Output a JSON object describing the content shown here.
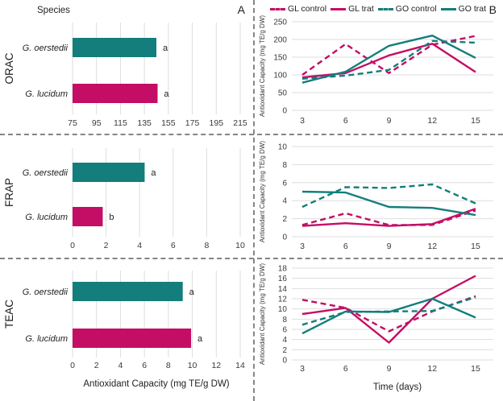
{
  "figure": {
    "panel_a_label": "A",
    "panel_b_label": "B"
  },
  "colors": {
    "teal": "#137e7c",
    "magenta": "#c40d64",
    "grid": "#dedede",
    "tick_text": "#3a3a3a",
    "separator": "#858585"
  },
  "legend": {
    "items": [
      {
        "label": "GL control",
        "color": "magenta",
        "dashed": true
      },
      {
        "label": "GL trat",
        "color": "magenta",
        "dashed": false
      },
      {
        "label": "GO control",
        "color": "teal",
        "dashed": true
      },
      {
        "label": "GO trat",
        "color": "teal",
        "dashed": false
      }
    ]
  },
  "chart_data": [
    {
      "id": "orac_bar",
      "type": "bar",
      "panel": "A",
      "assay": "ORAC",
      "orientation": "horizontal",
      "legend_title": "Species",
      "categories": [
        "G. oerstedii",
        "G. lucidum"
      ],
      "values": [
        145,
        146
      ],
      "sig_letters": [
        "a",
        "a"
      ],
      "bar_colors": [
        "teal",
        "magenta"
      ],
      "xlim": [
        75,
        215
      ],
      "xticks": [
        75,
        95,
        115,
        135,
        155,
        175,
        195,
        215
      ],
      "grid": "vertical"
    },
    {
      "id": "frap_bar",
      "type": "bar",
      "panel": "A",
      "assay": "FRAP",
      "orientation": "horizontal",
      "categories": [
        "G. oerstedii",
        "G. lucidum"
      ],
      "values": [
        4.3,
        1.8
      ],
      "sig_letters": [
        "a",
        "b"
      ],
      "bar_colors": [
        "teal",
        "magenta"
      ],
      "xlim": [
        0,
        10
      ],
      "xticks": [
        0,
        2,
        4,
        6,
        8,
        10
      ],
      "grid": "vertical"
    },
    {
      "id": "teac_bar",
      "type": "bar",
      "panel": "A",
      "assay": "TEAC",
      "orientation": "horizontal",
      "categories": [
        "G. oerstedii",
        "G. lucidum"
      ],
      "values": [
        9.2,
        9.9
      ],
      "sig_letters": [
        "a",
        "a"
      ],
      "bar_colors": [
        "teal",
        "magenta"
      ],
      "xlim": [
        0,
        14
      ],
      "xticks": [
        0,
        2,
        4,
        6,
        8,
        10,
        12,
        14
      ],
      "xlabel": "Antioxidant Capacity (mg TE/g DW)",
      "grid": "vertical"
    },
    {
      "id": "orac_line",
      "type": "line",
      "panel": "B",
      "assay": "ORAC",
      "x": [
        3,
        6,
        9,
        12,
        15
      ],
      "ylim": [
        0,
        250
      ],
      "yticks": [
        0,
        50,
        100,
        150,
        200,
        250
      ],
      "ylabel": "Antioxidant Capacity (mg TE/g DW)",
      "grid": "horizontal",
      "series": [
        {
          "name": "GL control",
          "color": "magenta",
          "dashed": true,
          "values": [
            100,
            187,
            105,
            185,
            210
          ]
        },
        {
          "name": "GL trat",
          "color": "magenta",
          "dashed": false,
          "values": [
            93,
            105,
            155,
            188,
            108
          ]
        },
        {
          "name": "GO control",
          "color": "teal",
          "dashed": true,
          "values": [
            89,
            98,
            114,
            196,
            191
          ]
        },
        {
          "name": "GO trat",
          "color": "teal",
          "dashed": false,
          "values": [
            78,
            109,
            182,
            211,
            148
          ]
        }
      ]
    },
    {
      "id": "frap_line",
      "type": "line",
      "panel": "B",
      "assay": "FRAP",
      "x": [
        3,
        6,
        9,
        12,
        15
      ],
      "ylim": [
        0,
        10
      ],
      "yticks": [
        0,
        2,
        4,
        6,
        8,
        10
      ],
      "ylabel": "Antioxidant Capacity (mg TE/g DW)",
      "grid": "horizontal",
      "series": [
        {
          "name": "GL control",
          "color": "magenta",
          "dashed": true,
          "values": [
            1.3,
            2.6,
            1.3,
            1.3,
            2.9
          ]
        },
        {
          "name": "GL trat",
          "color": "magenta",
          "dashed": false,
          "values": [
            1.2,
            1.5,
            1.2,
            1.4,
            3.1
          ]
        },
        {
          "name": "GO control",
          "color": "teal",
          "dashed": true,
          "values": [
            3.3,
            5.5,
            5.4,
            5.8,
            3.7
          ]
        },
        {
          "name": "GO trat",
          "color": "teal",
          "dashed": false,
          "values": [
            5.0,
            4.9,
            3.3,
            3.2,
            2.4
          ]
        }
      ]
    },
    {
      "id": "teac_line",
      "type": "line",
      "panel": "B",
      "assay": "TEAC",
      "x": [
        3,
        6,
        9,
        12,
        15
      ],
      "ylim": [
        0,
        18
      ],
      "yticks": [
        0,
        2,
        4,
        6,
        8,
        10,
        12,
        14,
        16,
        18
      ],
      "ylabel": "Antioxidant Capacity (mg TE/g DW)",
      "xlabel": "Time (days)",
      "grid": "horizontal",
      "series": [
        {
          "name": "GL control",
          "color": "magenta",
          "dashed": true,
          "values": [
            11.8,
            10.2,
            5.6,
            9.5,
            12.5
          ]
        },
        {
          "name": "GL trat",
          "color": "magenta",
          "dashed": false,
          "values": [
            9.0,
            10.2,
            3.4,
            12.0,
            16.5
          ]
        },
        {
          "name": "GO control",
          "color": "teal",
          "dashed": true,
          "values": [
            6.9,
            9.4,
            9.5,
            9.6,
            12.3
          ]
        },
        {
          "name": "GO trat",
          "color": "teal",
          "dashed": false,
          "values": [
            5.2,
            9.5,
            9.4,
            12.0,
            8.3
          ]
        }
      ]
    }
  ]
}
